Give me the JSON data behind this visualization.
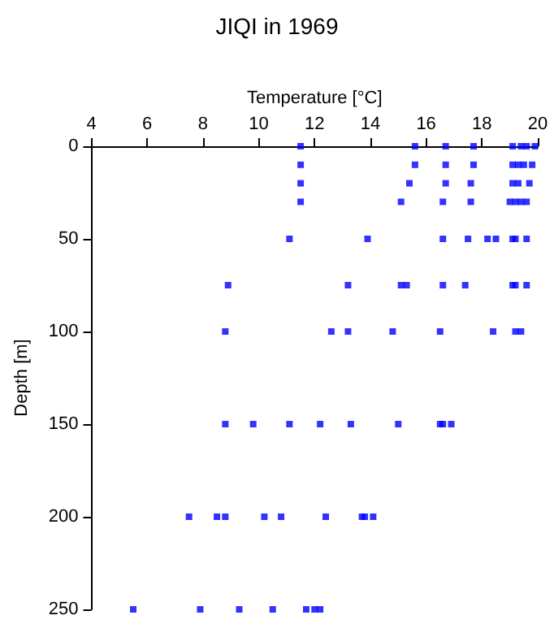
{
  "chart_data": {
    "type": "scatter",
    "title": "JIQI in 1969",
    "xlabel": "Temperature [°C]",
    "ylabel": "Depth [m]",
    "xlim": [
      4,
      20
    ],
    "xticks": [
      4,
      6,
      8,
      10,
      12,
      14,
      16,
      18,
      20
    ],
    "ylim": [
      250,
      0
    ],
    "yticks": [
      0,
      50,
      100,
      150,
      200,
      250
    ],
    "grid": false,
    "marker": "square",
    "series": [
      {
        "color": "#0000ff",
        "x": [
          11.5,
          15.6,
          16.7,
          17.7,
          19.1,
          19.4,
          19.6,
          19.9,
          11.5,
          15.6,
          16.7,
          17.7,
          19.1,
          19.3,
          19.5,
          19.8,
          11.5,
          15.4,
          16.7,
          17.6,
          19.1,
          19.3,
          19.7,
          11.5,
          15.1,
          16.6,
          17.6,
          19.0,
          19.2,
          19.4,
          19.6,
          11.1,
          13.9,
          16.6,
          17.5,
          18.2,
          18.5,
          19.1,
          19.2,
          19.6,
          8.9,
          13.2,
          15.1,
          15.3,
          16.6,
          17.4,
          19.1,
          19.2,
          19.6,
          8.8,
          12.6,
          13.2,
          14.8,
          16.5,
          18.4,
          19.2,
          19.4,
          8.8,
          9.8,
          11.1,
          12.2,
          13.3,
          15.0,
          16.5,
          16.6,
          16.9,
          7.5,
          8.5,
          8.8,
          10.2,
          10.8,
          12.4,
          13.7,
          13.8,
          14.1,
          5.5,
          7.9,
          9.3,
          10.5,
          11.7,
          12.0,
          12.2
        ],
        "values": [
          0,
          0,
          0,
          0,
          0,
          0,
          0,
          0,
          10,
          10,
          10,
          10,
          10,
          10,
          10,
          10,
          20,
          20,
          20,
          20,
          20,
          20,
          20,
          30,
          30,
          30,
          30,
          30,
          30,
          30,
          30,
          50,
          50,
          50,
          50,
          50,
          50,
          50,
          50,
          50,
          75,
          75,
          75,
          75,
          75,
          75,
          75,
          75,
          75,
          100,
          100,
          100,
          100,
          100,
          100,
          100,
          100,
          150,
          150,
          150,
          150,
          150,
          150,
          150,
          150,
          150,
          200,
          200,
          200,
          200,
          200,
          200,
          200,
          200,
          200,
          250,
          250,
          250,
          250,
          250,
          250,
          250
        ]
      }
    ]
  }
}
